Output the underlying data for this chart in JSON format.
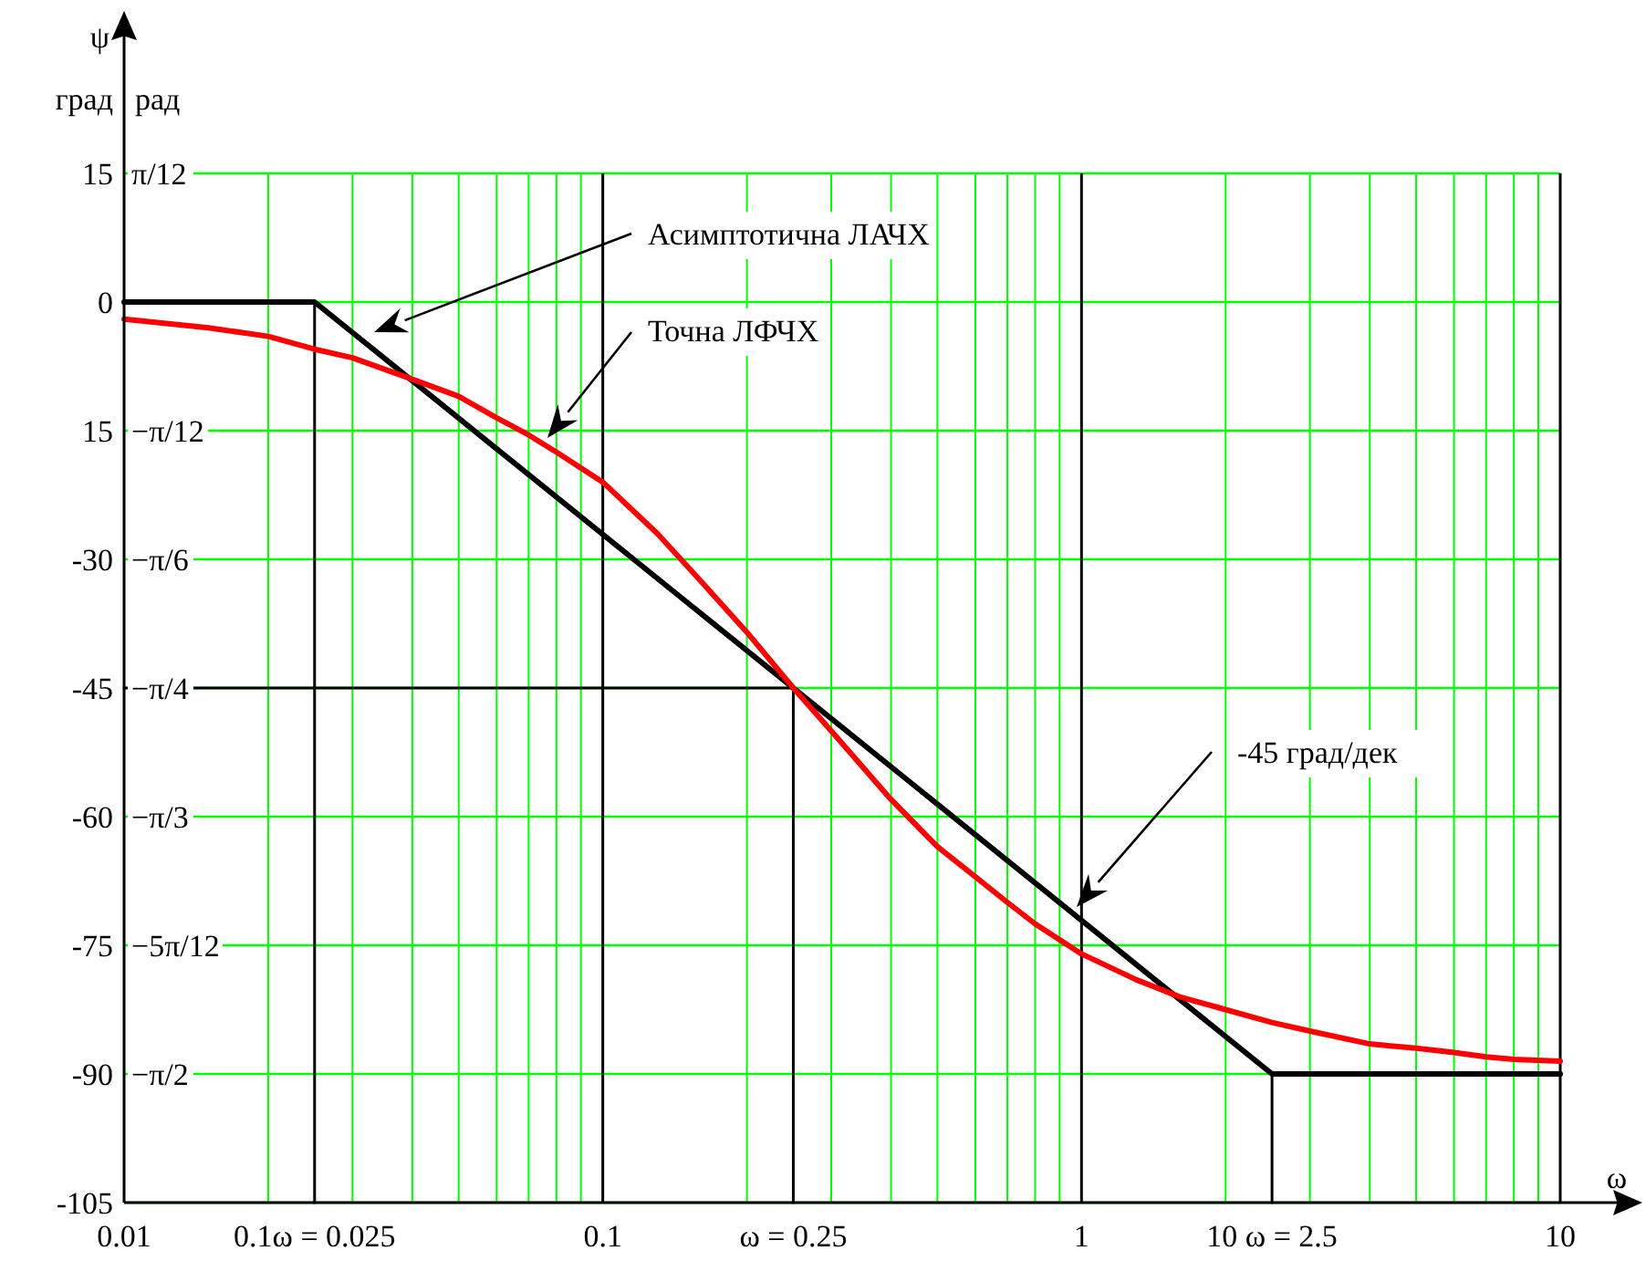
{
  "chart_data": {
    "type": "line",
    "xlabel": "ω",
    "ylabel": "ψ",
    "log": "x",
    "grid": true,
    "xlim": [
      0.01,
      10
    ],
    "xticks": [
      {
        "value": 0.01,
        "label": "0.01"
      },
      {
        "value": 0.02,
        "label": null
      },
      {
        "value": 0.025,
        "label": "0.1ω = 0.025"
      },
      {
        "value": 0.03,
        "label": null
      },
      {
        "value": 0.04,
        "label": null
      },
      {
        "value": 0.05,
        "label": null
      },
      {
        "value": 0.06,
        "label": null
      },
      {
        "value": 0.07,
        "label": null
      },
      {
        "value": 0.08,
        "label": null
      },
      {
        "value": 0.09,
        "label": null
      },
      {
        "value": 0.1,
        "label": "0.1"
      },
      {
        "value": 0.2,
        "label": null
      },
      {
        "value": 0.25,
        "label": "ω = 0.25"
      },
      {
        "value": 0.3,
        "label": null
      },
      {
        "value": 0.4,
        "label": null
      },
      {
        "value": 0.5,
        "label": null
      },
      {
        "value": 0.6,
        "label": null
      },
      {
        "value": 0.7,
        "label": null
      },
      {
        "value": 0.8,
        "label": null
      },
      {
        "value": 0.9,
        "label": null
      },
      1,
      {
        "value": 2,
        "label": null
      },
      {
        "value": 2.5,
        "label": "10 ω = 2.5"
      },
      {
        "value": 3,
        "label": null
      },
      {
        "value": 4,
        "label": null
      },
      {
        "value": 5,
        "label": null
      },
      {
        "value": 6,
        "label": null
      },
      {
        "value": 7,
        "label": null
      },
      {
        "value": 8,
        "label": null
      },
      {
        "value": 9,
        "label": null
      },
      10
    ],
    "ylim": [
      -105,
      15
    ],
    "yticks": [
      -105,
      -90,
      -75,
      -60,
      -45,
      -30,
      {
        "value": -15,
        "label": "15"
      },
      0,
      15
    ],
    "y2lim": [
      -1.8326,
      0.2618
    ],
    "y2ticks": [
      {
        "value": -1.5708,
        "label": "−π/2"
      },
      {
        "value": -1.309,
        "label": "−5π/12"
      },
      {
        "value": -1.0472,
        "label": "−π/3"
      },
      {
        "value": -0.7854,
        "label": "−π/4"
      },
      {
        "value": -0.5236,
        "label": "−π/6"
      },
      {
        "value": -0.2618,
        "label": "−π/12"
      },
      {
        "value": 0.2618,
        "label": "π/12"
      }
    ],
    "series": [
      {
        "color": "#000000",
        "x": [
          0.01,
          0.025,
          2.5,
          10
        ],
        "values": [
          0,
          0,
          -90,
          -90
        ]
      },
      {
        "color": "#000000",
        "x": [
          0.025,
          0.025
        ],
        "values": [
          -105,
          0
        ]
      },
      {
        "color": "#000000",
        "x": [
          0.25,
          0.25
        ],
        "values": [
          -105,
          -45
        ]
      },
      {
        "color": "#000000",
        "x": [
          2.5,
          2.5
        ],
        "values": [
          -105,
          -90
        ]
      },
      {
        "color": "#000000",
        "x": [
          0.01,
          0.25
        ],
        "values": [
          -45,
          -45
        ]
      },
      {
        "color": "#ff0000",
        "x": [
          0.01,
          0.015,
          0.02,
          0.025,
          0.03,
          0.04,
          0.05,
          0.06,
          0.07,
          0.08,
          0.1,
          0.13,
          0.16,
          0.2,
          0.25,
          0.3,
          0.4,
          0.5,
          0.6,
          0.7,
          0.8,
          1,
          1.3,
          1.6,
          2,
          2.5,
          3,
          4,
          5,
          6,
          7,
          8,
          10
        ],
        "values": [
          -2,
          -3,
          -4,
          -5.5,
          -6.5,
          -9,
          -11,
          -13.5,
          -15.5,
          -17.5,
          -21,
          -27,
          -32.5,
          -38.5,
          -45,
          -50,
          -58,
          -63.5,
          -67,
          -70,
          -72.5,
          -76,
          -79,
          -81,
          -82.5,
          -84,
          -85,
          -86.5,
          -87,
          -87.5,
          -88,
          -88.3,
          -88.5
        ]
      }
    ],
    "ref_lines": [
      {
        "axis": "x",
        "value": 0.1,
        "color": "#000000"
      },
      {
        "axis": "x",
        "value": 1,
        "color": "#000000"
      }
    ],
    "annotations": [
      "град",
      "рад",
      "Асимптотична ЛАЧХ",
      "Точна ЛФЧХ",
      "-45 град/дек"
    ]
  }
}
